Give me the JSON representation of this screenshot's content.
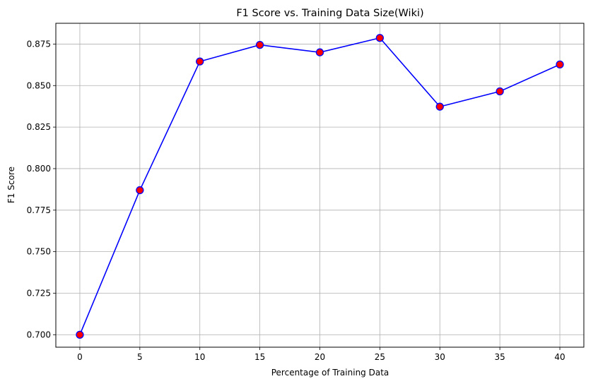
{
  "chart_data": {
    "type": "line",
    "title": "F1 Score vs. Training Data Size(Wiki)",
    "xlabel": "Percentage of Training Data",
    "ylabel": "F1 Score",
    "x": [
      0,
      5,
      10,
      15,
      20,
      25,
      30,
      35,
      40
    ],
    "series": [
      {
        "values": [
          0.7,
          0.787,
          0.8645,
          0.8745,
          0.87,
          0.8787,
          0.8373,
          0.8465,
          0.8627
        ]
      }
    ],
    "xlim": [
      -2,
      42
    ],
    "ylim": [
      0.6925,
      0.8875
    ],
    "xticks": [
      0,
      5,
      10,
      15,
      20,
      25,
      30,
      35,
      40
    ],
    "xtick_labels": [
      "0",
      "5",
      "10",
      "15",
      "20",
      "25",
      "30",
      "35",
      "40"
    ],
    "yticks": [
      0.7,
      0.725,
      0.75,
      0.775,
      0.8,
      0.825,
      0.85,
      0.875
    ],
    "ytick_labels": [
      "0.700",
      "0.725",
      "0.750",
      "0.775",
      "0.800",
      "0.825",
      "0.850",
      "0.875"
    ],
    "grid": true,
    "line_color": "#0000ff",
    "marker_face_color": "#ff0000",
    "marker_edge_color": "#0000ff",
    "grid_color": "#b0b0b0"
  }
}
